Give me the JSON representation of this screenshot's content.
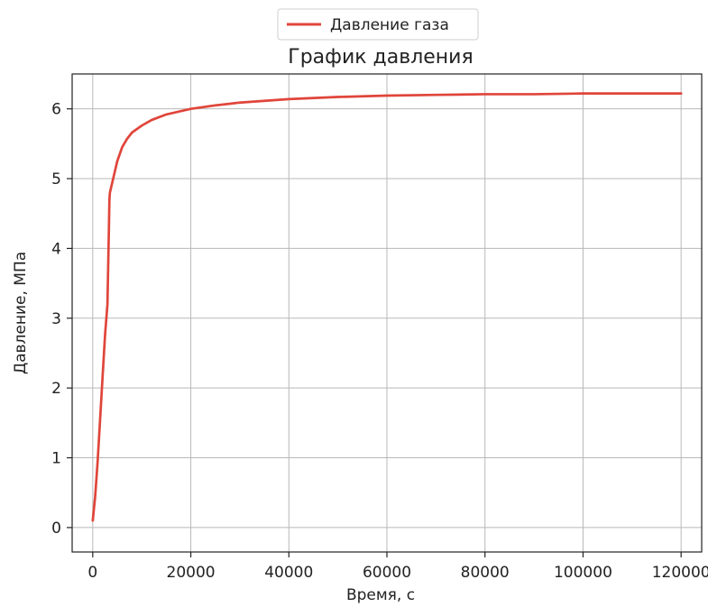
{
  "chart_data": {
    "type": "line",
    "title": "График давления",
    "xlabel": "Время, с",
    "ylabel": "Давление, МПа",
    "xlim": [
      -4200,
      124200
    ],
    "ylim": [
      -0.35,
      6.5
    ],
    "xticks": [
      0,
      20000,
      40000,
      60000,
      80000,
      100000,
      120000
    ],
    "xtick_labels": [
      "0",
      "20000",
      "40000",
      "60000",
      "80000",
      "100000",
      "120000"
    ],
    "yticks": [
      0,
      1,
      2,
      3,
      4,
      5,
      6
    ],
    "ytick_labels": [
      "0",
      "1",
      "2",
      "3",
      "4",
      "5",
      "6"
    ],
    "grid": true,
    "legend_position": "top-center-outside",
    "series": [
      {
        "name": "Давление газа",
        "color": "#e0453a",
        "x": [
          0,
          500,
          1000,
          1500,
          2000,
          2500,
          3000,
          3300,
          3400,
          3500,
          4000,
          5000,
          6000,
          7000,
          8000,
          10000,
          12000,
          15000,
          20000,
          25000,
          30000,
          40000,
          50000,
          60000,
          70000,
          80000,
          90000,
          100000,
          110000,
          120000
        ],
        "y": [
          0.1,
          0.45,
          0.95,
          1.55,
          2.15,
          2.75,
          3.2,
          4.3,
          4.7,
          4.8,
          4.95,
          5.25,
          5.45,
          5.57,
          5.66,
          5.76,
          5.84,
          5.92,
          6.0,
          6.05,
          6.09,
          6.14,
          6.17,
          6.19,
          6.2,
          6.21,
          6.21,
          6.22,
          6.22,
          6.22
        ]
      }
    ]
  }
}
